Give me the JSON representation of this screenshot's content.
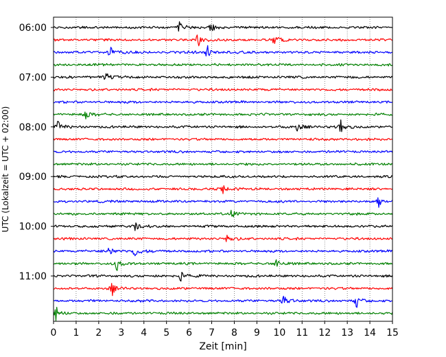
{
  "chart_data": {
    "type": "line",
    "xlabel": "Zeit  [min]",
    "ylabel": "UTC (Lokalzeit = UTC + 02:00)",
    "xlim": [
      0,
      15
    ],
    "x_ticks": [
      0,
      1,
      2,
      3,
      4,
      5,
      6,
      7,
      8,
      9,
      10,
      11,
      12,
      13,
      14,
      15
    ],
    "y_tick_labels": [
      "06:00",
      "07:00",
      "08:00",
      "09:00",
      "10:00",
      "11:00"
    ],
    "vertical_grid": "dotted",
    "trace_colors": [
      "#000000",
      "#ff0000",
      "#0000ff",
      "#008000"
    ],
    "series": [
      {
        "start": "06:00",
        "events": [
          5.6,
          7.0
        ]
      },
      {
        "start": "06:15",
        "events": [
          6.4,
          9.8
        ]
      },
      {
        "start": "06:30",
        "events": [
          2.5,
          6.8
        ]
      },
      {
        "start": "06:45",
        "events": []
      },
      {
        "start": "07:00",
        "events": [
          2.3
        ]
      },
      {
        "start": "07:15",
        "events": []
      },
      {
        "start": "07:30",
        "events": []
      },
      {
        "start": "07:45",
        "events": [
          1.4
        ]
      },
      {
        "start": "08:00",
        "events": [
          0.2,
          10.8,
          12.7
        ]
      },
      {
        "start": "08:15",
        "events": []
      },
      {
        "start": "08:30",
        "events": []
      },
      {
        "start": "08:45",
        "events": []
      },
      {
        "start": "09:00",
        "events": []
      },
      {
        "start": "09:15",
        "events": [
          7.5
        ]
      },
      {
        "start": "09:30",
        "events": [
          14.4
        ]
      },
      {
        "start": "09:45",
        "events": [
          7.9
        ]
      },
      {
        "start": "10:00",
        "events": [
          3.6
        ]
      },
      {
        "start": "10:15",
        "events": [
          7.7
        ]
      },
      {
        "start": "10:30",
        "events": [
          2.5,
          3.6
        ]
      },
      {
        "start": "10:45",
        "events": [
          2.8,
          9.9
        ]
      },
      {
        "start": "11:00",
        "events": [
          5.6
        ]
      },
      {
        "start": "11:15",
        "events": [
          2.6
        ]
      },
      {
        "start": "11:30",
        "events": [
          10.2,
          13.4
        ]
      },
      {
        "start": "11:45",
        "events": [
          0.1
        ]
      }
    ]
  }
}
